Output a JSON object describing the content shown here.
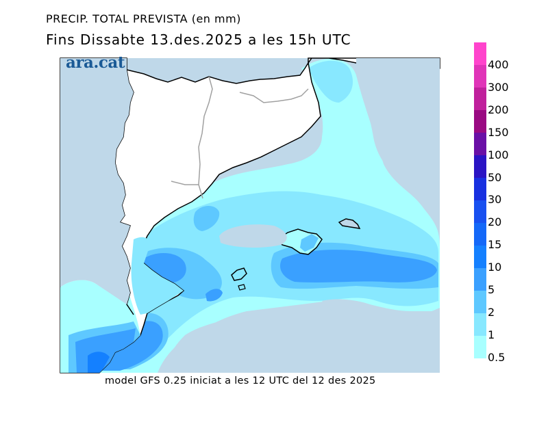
{
  "title_line1": "PRECIP. TOTAL PREVISTA (en mm)",
  "title_line2": "Fins Dissabte   13.des.2025 a les 15h UTC",
  "logo_text": "ara.cat",
  "footer": "model GFS 0.25 iniciat a les 12 UTC del 12 des 2025",
  "colors": {
    "sea": "#bfd8e9",
    "land": "#ffffff",
    "coast": "#000000",
    "border": "#a0a0a0"
  },
  "legend": {
    "labels": [
      "400",
      "300",
      "200",
      "150",
      "100",
      "50",
      "30",
      "20",
      "15",
      "10",
      "5",
      "2",
      "1",
      "0.5"
    ],
    "colors": [
      "#ff44cc",
      "#e034b8",
      "#c0209c",
      "#9a0a82",
      "#6a10a6",
      "#2a14c4",
      "#1830e0",
      "#1850f0",
      "#1468f8",
      "#1480ff",
      "#3aa0ff",
      "#5ec8ff",
      "#88e8ff",
      "#a8ffff"
    ]
  }
}
